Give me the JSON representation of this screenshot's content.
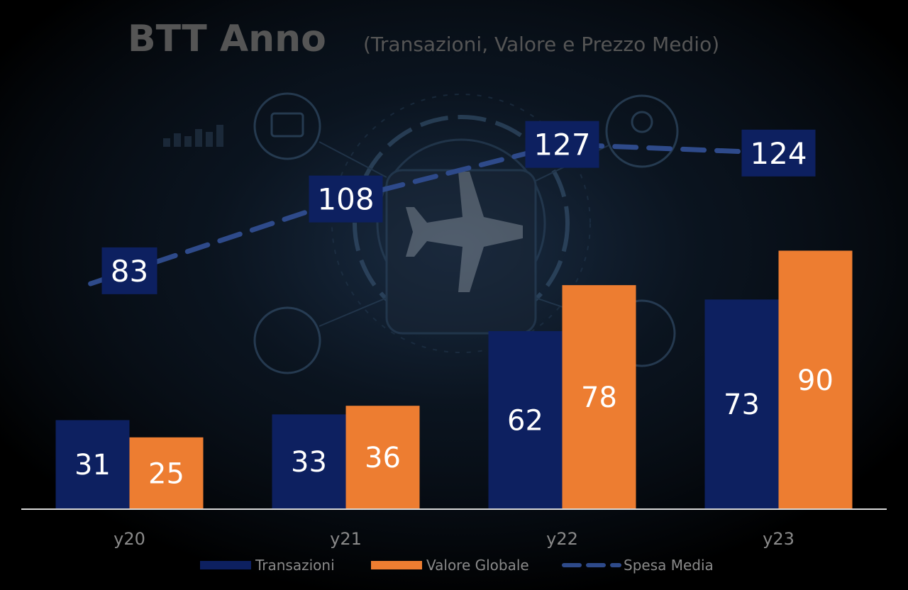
{
  "chart_data": {
    "type": "bar",
    "title": "BTT Anno",
    "subtitle": "(Transazioni, Valore e Prezzo Medio)",
    "categories": [
      "y20",
      "y21",
      "y22",
      "y23"
    ],
    "ylim": [
      0,
      160
    ],
    "grid": false,
    "legend_position": "bottom",
    "series": [
      {
        "name": "Transazioni",
        "type": "bar",
        "values": [
          31,
          33,
          62,
          73
        ],
        "color": "#0d2060"
      },
      {
        "name": "Valore Globale",
        "type": "bar",
        "values": [
          25,
          36,
          78,
          90
        ],
        "color": "#ed7d31"
      },
      {
        "name": "Spesa Media",
        "type": "line",
        "style": "dashed",
        "values": [
          83,
          108,
          127,
          124
        ],
        "color": "#2e4a8a",
        "label_bg": "#0d2060"
      }
    ]
  },
  "colors": {
    "background": "#000000",
    "title": "#555555",
    "axis": "#d9d9d9",
    "tick_text": "#8a8a8a",
    "label_text": "#ffffff"
  },
  "background_icon": "airplane-tech-icon"
}
